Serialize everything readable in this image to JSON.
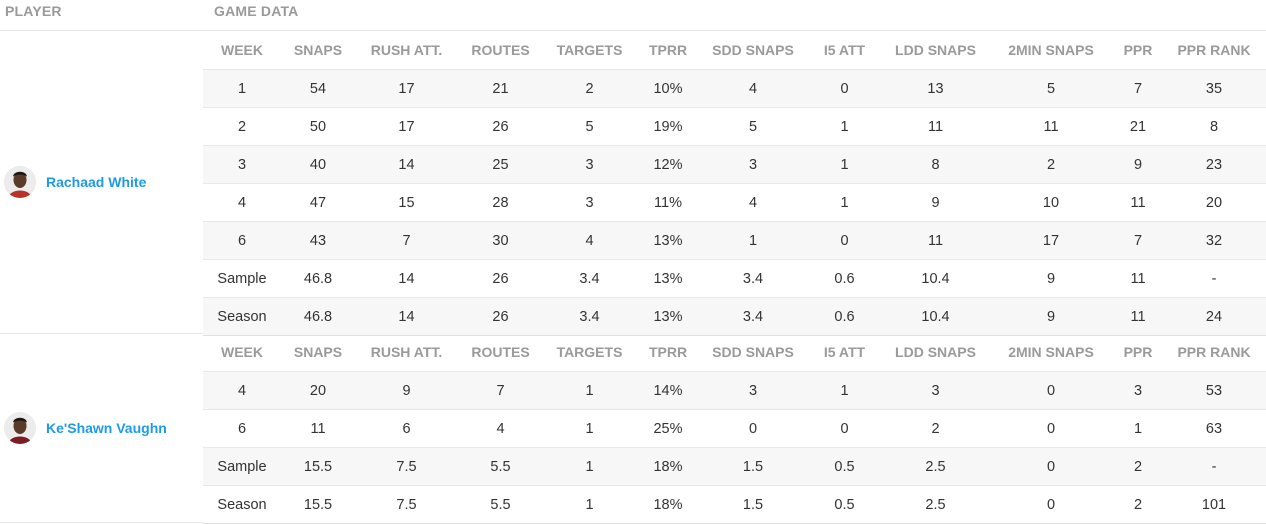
{
  "header": {
    "player_label": "PLAYER",
    "game_data_label": "GAME DATA"
  },
  "columns": [
    "WEEK",
    "SNAPS",
    "RUSH ATT.",
    "ROUTES",
    "TARGETS",
    "TPRR",
    "SDD SNAPS",
    "I5 ATT",
    "LDD SNAPS",
    "2MIN SNAPS",
    "PPR",
    "PPR RANK"
  ],
  "players": [
    {
      "name": "Rachaad White",
      "avatar_icon": "player-headshot-icon",
      "rows": [
        [
          "1",
          "54",
          "17",
          "21",
          "2",
          "10%",
          "4",
          "0",
          "13",
          "5",
          "7",
          "35"
        ],
        [
          "2",
          "50",
          "17",
          "26",
          "5",
          "19%",
          "5",
          "1",
          "11",
          "11",
          "21",
          "8"
        ],
        [
          "3",
          "40",
          "14",
          "25",
          "3",
          "12%",
          "3",
          "1",
          "8",
          "2",
          "9",
          "23"
        ],
        [
          "4",
          "47",
          "15",
          "28",
          "3",
          "11%",
          "4",
          "1",
          "9",
          "10",
          "11",
          "20"
        ],
        [
          "6",
          "43",
          "7",
          "30",
          "4",
          "13%",
          "1",
          "0",
          "11",
          "17",
          "7",
          "32"
        ],
        [
          "Sample",
          "46.8",
          "14",
          "26",
          "3.4",
          "13%",
          "3.4",
          "0.6",
          "10.4",
          "9",
          "11",
          "-"
        ],
        [
          "Season",
          "46.8",
          "14",
          "26",
          "3.4",
          "13%",
          "3.4",
          "0.6",
          "10.4",
          "9",
          "11",
          "24"
        ]
      ]
    },
    {
      "name": "Ke'Shawn Vaughn",
      "avatar_icon": "player-headshot-icon",
      "rows": [
        [
          "4",
          "20",
          "9",
          "7",
          "1",
          "14%",
          "3",
          "1",
          "3",
          "0",
          "3",
          "53"
        ],
        [
          "6",
          "11",
          "6",
          "4",
          "1",
          "25%",
          "0",
          "0",
          "2",
          "0",
          "1",
          "63"
        ],
        [
          "Sample",
          "15.5",
          "7.5",
          "5.5",
          "1",
          "18%",
          "1.5",
          "0.5",
          "2.5",
          "0",
          "2",
          "-"
        ],
        [
          "Season",
          "15.5",
          "7.5",
          "5.5",
          "1",
          "18%",
          "1.5",
          "0.5",
          "2.5",
          "0",
          "2",
          "101"
        ]
      ]
    }
  ],
  "colors": {
    "link": "#1e9be6",
    "header_text": "#9a9a9a",
    "row_alt": "#f7f7f7"
  }
}
